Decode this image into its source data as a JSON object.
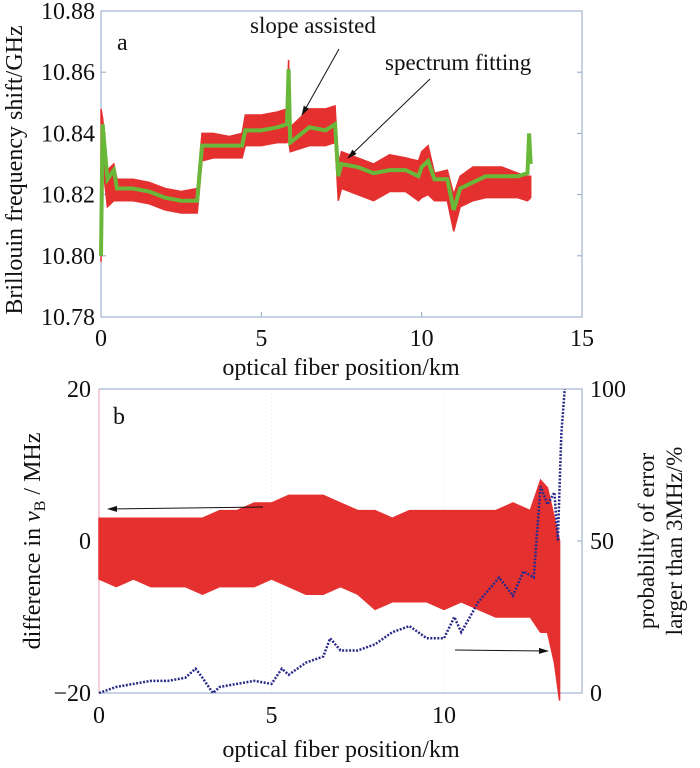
{
  "chart_data": [
    {
      "type": "line",
      "panel_label": "a",
      "xlabel": "optical fiber position/km",
      "ylabel": "Brillouin frequency shift/GHz",
      "xlim": [
        0,
        15
      ],
      "ylim": [
        10.78,
        10.88
      ],
      "xticks": [
        "0",
        "5",
        "10",
        "15"
      ],
      "yticks": [
        "10.78",
        "10.80",
        "10.82",
        "10.84",
        "10.86",
        "10.88"
      ],
      "annotations": [
        "slope assisted",
        "spectrum fitting"
      ],
      "colors": {
        "slope_assisted": "#e53030",
        "spectrum_fitting": "#6ab83a"
      },
      "series": [
        {
          "label_ref": "slope assisted",
          "x": [
            0,
            0.05,
            0.2,
            0.4,
            0.5,
            1,
            1.5,
            2,
            2.5,
            3,
            3.15,
            3.5,
            4,
            4.4,
            4.5,
            5,
            5.5,
            5.8,
            5.85,
            5.9,
            6.5,
            7,
            7.3,
            7.4,
            7.5,
            8,
            8.5,
            9,
            9.5,
            9.9,
            10,
            10.2,
            10.4,
            10.8,
            11,
            11.2,
            11.6,
            12,
            12.5,
            13,
            13.3,
            13.4
          ],
          "y_low": [
            10.798,
            10.83,
            10.816,
            10.818,
            10.818,
            10.818,
            10.817,
            10.815,
            10.814,
            10.814,
            10.831,
            10.832,
            10.832,
            10.832,
            10.836,
            10.836,
            10.837,
            10.837,
            10.838,
            10.834,
            10.836,
            10.836,
            10.837,
            10.818,
            10.822,
            10.82,
            10.818,
            10.821,
            10.821,
            10.818,
            10.819,
            10.82,
            10.818,
            10.818,
            10.808,
            10.816,
            10.818,
            10.819,
            10.819,
            10.819,
            10.818,
            10.819
          ],
          "y_high": [
            10.848,
            10.845,
            10.828,
            10.83,
            10.825,
            10.825,
            10.824,
            10.822,
            10.821,
            10.822,
            10.84,
            10.84,
            10.839,
            10.84,
            10.846,
            10.846,
            10.847,
            10.848,
            10.864,
            10.842,
            10.848,
            10.848,
            10.849,
            10.83,
            10.834,
            10.832,
            10.83,
            10.833,
            10.832,
            10.831,
            10.834,
            10.836,
            10.827,
            10.828,
            10.82,
            10.826,
            10.829,
            10.829,
            10.829,
            10.827,
            10.826,
            10.826
          ]
        },
        {
          "label_ref": "spectrum fitting",
          "x": [
            0,
            0.05,
            0.2,
            0.4,
            0.5,
            1,
            1.5,
            2,
            2.5,
            3,
            3.15,
            3.5,
            4,
            4.4,
            4.5,
            5,
            5.5,
            5.8,
            5.85,
            5.9,
            6.5,
            7,
            7.3,
            7.4,
            7.5,
            8,
            8.5,
            9,
            9.5,
            9.9,
            10,
            10.2,
            10.4,
            10.8,
            11,
            11.2,
            11.6,
            12,
            12.5,
            13,
            13.3,
            13.35,
            13.4
          ],
          "y": [
            10.8,
            10.843,
            10.825,
            10.828,
            10.822,
            10.822,
            10.821,
            10.819,
            10.818,
            10.818,
            10.836,
            10.836,
            10.836,
            10.836,
            10.841,
            10.841,
            10.842,
            10.843,
            10.861,
            10.837,
            10.842,
            10.841,
            10.843,
            10.826,
            10.83,
            10.829,
            10.827,
            10.828,
            10.828,
            10.826,
            10.829,
            10.831,
            10.825,
            10.825,
            10.815,
            10.822,
            10.824,
            10.826,
            10.826,
            10.826,
            10.827,
            10.84,
            10.83
          ]
        }
      ]
    },
    {
      "type": "line",
      "panel_label": "b",
      "xlabel": "optical fiber position/km",
      "ylabel_left": "difference in ν_B / MHz",
      "ylabel_left_parts": {
        "prefix": "difference in ",
        "symbol": "ν",
        "subscript": "B",
        "suffix": " / MHz"
      },
      "ylabel_right_line1": "probability of error",
      "ylabel_right_line2": "larger than 3MHz/%",
      "xlim": [
        0,
        14
      ],
      "ylim_left": [
        -20,
        20
      ],
      "ylim_right": [
        0,
        100
      ],
      "xticks": [
        "0",
        "5",
        "10"
      ],
      "yticks_left": [
        "−20",
        "0",
        "20"
      ],
      "yticks_right": [
        "0",
        "50",
        "100"
      ],
      "colors": {
        "difference": "#e53030",
        "probability": "#2b2b8a"
      },
      "series": [
        {
          "axis": "left",
          "x": [
            0,
            0.5,
            1,
            1.5,
            2,
            2.5,
            3,
            3.5,
            4,
            4.5,
            5,
            5.5,
            6,
            6.5,
            7,
            7.5,
            8,
            8.5,
            9,
            9.5,
            10,
            10.5,
            11,
            11.5,
            12,
            12.5,
            12.8,
            13,
            13.2,
            13.35
          ],
          "y_low": [
            -5,
            -6,
            -5,
            -6,
            -6,
            -6,
            -7,
            -6,
            -6,
            -6,
            -5,
            -6,
            -7,
            -7,
            -6,
            -7,
            -9,
            -8,
            -8,
            -8,
            -9,
            -8,
            -9,
            -10,
            -10,
            -10,
            -12,
            -12,
            -16,
            -21
          ],
          "y_high": [
            3,
            3,
            3,
            3,
            3,
            3,
            3,
            4,
            4,
            5,
            5,
            6,
            6,
            6,
            5,
            4,
            4,
            3,
            4,
            4,
            4,
            4,
            4,
            4,
            5,
            4,
            8,
            7,
            3,
            0
          ]
        },
        {
          "axis": "right",
          "x": [
            0,
            0.5,
            1,
            1.5,
            2,
            2.5,
            2.8,
            3,
            3.3,
            3.5,
            4,
            4.5,
            5,
            5.3,
            5.5,
            6,
            6.5,
            6.7,
            7,
            7.5,
            8,
            8.5,
            9,
            9.5,
            10,
            10.3,
            10.5,
            11,
            11.3,
            11.6,
            12,
            12.3,
            12.6,
            12.8,
            13,
            13.2,
            13.3,
            13.4,
            13.5
          ],
          "y": [
            0,
            2,
            3,
            4,
            4,
            5,
            8,
            5,
            0,
            2,
            3,
            4,
            3,
            8,
            6,
            10,
            12,
            18,
            14,
            14,
            16,
            20,
            22,
            18,
            18,
            25,
            20,
            30,
            34,
            38,
            32,
            40,
            38,
            68,
            62,
            66,
            50,
            85,
            100
          ]
        }
      ]
    }
  ]
}
